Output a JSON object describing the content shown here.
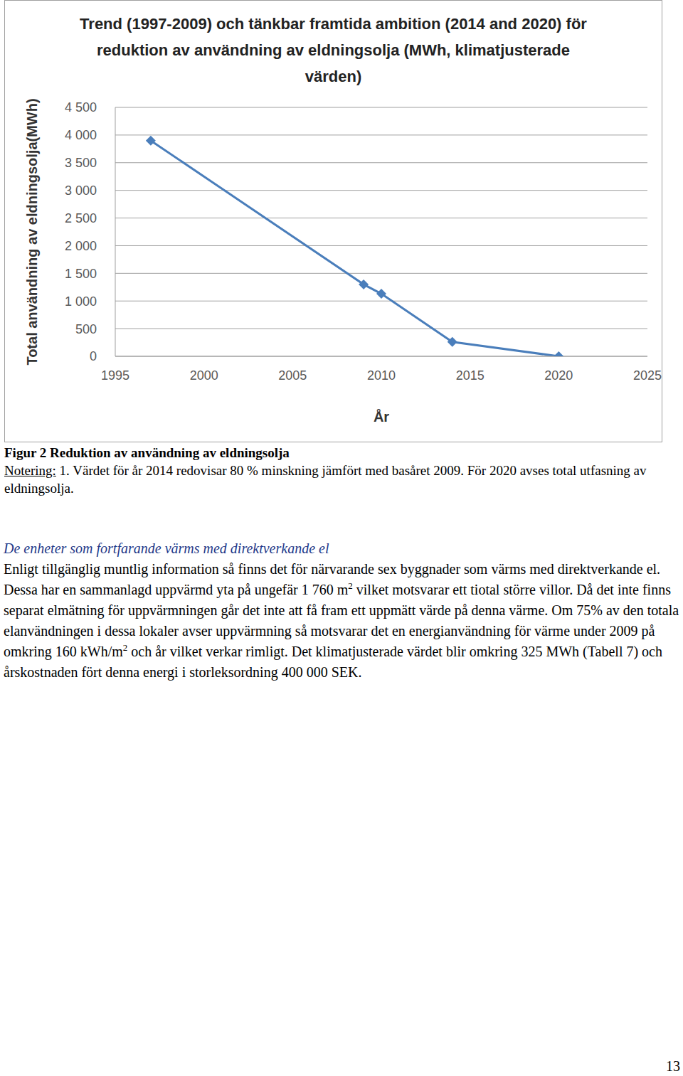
{
  "chart_data": {
    "type": "line",
    "title": "Trend (1997-2009) och tänkbar framtida ambition (2014 and 2020) för reduktion av användning av eldningsolja (MWh, klimatjusterade värden)",
    "x_label": "År",
    "y_label": "Total användning av eldningsolja(MWh)",
    "x": [
      1997,
      2009,
      2010,
      2014,
      2020
    ],
    "values": [
      3900,
      1300,
      1130,
      260,
      0
    ],
    "color": "#4a7ebb",
    "marker": "diamond",
    "xlim": [
      1995,
      2025
    ],
    "xticks": [
      1995,
      2000,
      2005,
      2010,
      2015,
      2020,
      2025
    ],
    "ylim": [
      0,
      4500
    ],
    "yticks": [
      0,
      500,
      {
        "value": 1000,
        "label": "1 000"
      },
      {
        "value": 1500,
        "label": "1 500"
      },
      {
        "value": 2000,
        "label": "2 000"
      },
      {
        "value": 2500,
        "label": "2 500"
      },
      {
        "value": 3000,
        "label": "3 000"
      },
      {
        "value": 3500,
        "label": "3 500"
      },
      {
        "value": 4000,
        "label": "4 000"
      },
      {
        "value": 4500,
        "label": "4 500"
      }
    ],
    "grid": true
  },
  "caption": {
    "title": "Figur 2 Reduktion av användning av eldningsolja",
    "note_label": "Notering:",
    "note_text": " 1. Värdet för år 2014 redovisar 80 % minskning jämfört med basåret 2009. För 2020 avses total utfasning av eldningsolja."
  },
  "section": {
    "heading": "De enheter som fortfarande värms med direktverkande el",
    "paragraph": [
      {
        "text": "Enligt tillgänglig muntlig information så finns det för närvarande sex byggnader som värms med direktverkande el. Dessa har en sammanlagd uppvärmd yta på ungefär 1 760 m"
      },
      {
        "sup": "2"
      },
      {
        "text": " vilket motsvarar ett tiotal större villor. Då det inte finns separat elmätning för uppvärmningen går det inte att få fram ett uppmätt värde på denna värme. Om 75% av den totala elanvändningen i dessa lokaler avser uppvärmning så motsvarar det en energianvändning för värme under 2009 på omkring 160 kWh/m"
      },
      {
        "sup": "2"
      },
      {
        "text": " och år vilket verkar rimligt. Det klimatjusterade värdet blir omkring 325 MWh (Tabell 7) och årskostnaden fört denna energi i storleksordning 400 000 SEK."
      }
    ]
  },
  "page_number": "13"
}
